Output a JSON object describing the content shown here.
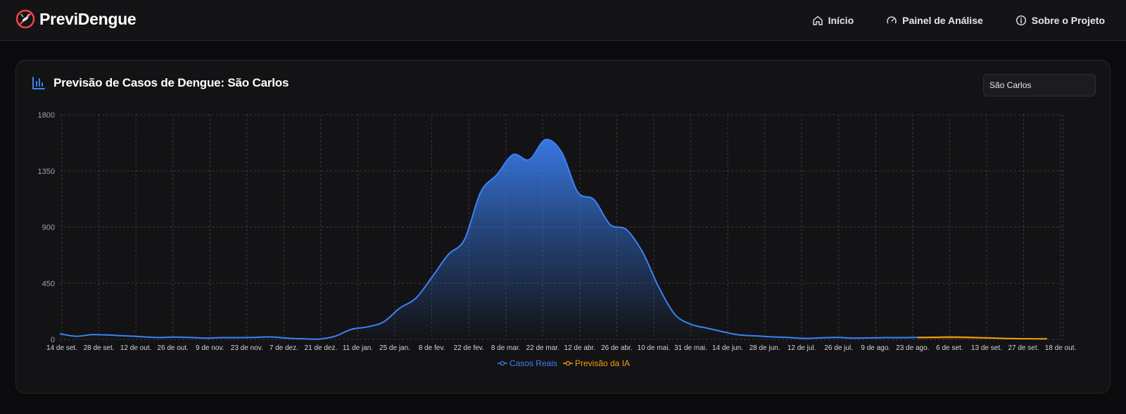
{
  "navbar": {
    "brand": "PreviDengue",
    "links": [
      {
        "label": "Início",
        "icon": "home-icon"
      },
      {
        "label": "Painel de Análise",
        "icon": "gauge-icon"
      },
      {
        "label": "Sobre o Projeto",
        "icon": "info-icon"
      }
    ]
  },
  "card": {
    "title": "Previsão de Casos de Dengue: São Carlos",
    "select_value": "São Carlos"
  },
  "colors": {
    "actual": "#3b82f6",
    "forecast": "#f59e0b",
    "grid": "#3a3a3f"
  },
  "chart_data": {
    "type": "area",
    "title": "Previsão de Casos de Dengue: São Carlos",
    "yticks": [
      0,
      450,
      900,
      1350,
      1800
    ],
    "ylim": [
      0,
      1800
    ],
    "xtick_labels": [
      "14 de set.",
      "28 de set.",
      "12 de out.",
      "26 de out.",
      "9 de nov.",
      "23 de nov.",
      "7 de dez.",
      "21 de dez.",
      "11 de jan.",
      "25 de jan.",
      "8 de fev.",
      "22 de fev.",
      "8 de mar.",
      "22 de mar.",
      "12 de abr.",
      "26 de abr.",
      "10 de mai.",
      "31 de mai.",
      "14 de jun.",
      "28 de jun.",
      "12 de jul.",
      "26 de jul.",
      "9 de ago.",
      "23 de ago.",
      "6 de set.",
      "13 de set.",
      "27 de set.",
      "18 de out."
    ],
    "grid": true,
    "legend_position": "bottom",
    "series": [
      {
        "name": "Casos Reais",
        "values": [
          45,
          25,
          38,
          35,
          28,
          22,
          15,
          18,
          15,
          10,
          14,
          14,
          16,
          20,
          10,
          5,
          2,
          25,
          80,
          100,
          140,
          250,
          330,
          500,
          680,
          800,
          1180,
          1320,
          1480,
          1440,
          1600,
          1500,
          1180,
          1120,
          920,
          880,
          700,
          420,
          200,
          120,
          90,
          60,
          35,
          28,
          20,
          15,
          8,
          12,
          16,
          10,
          12,
          14,
          14,
          15
        ]
      },
      {
        "name": "Previsão da IA",
        "values": [
          15,
          17,
          19,
          17,
          13,
          9,
          6,
          5,
          4
        ]
      }
    ]
  }
}
